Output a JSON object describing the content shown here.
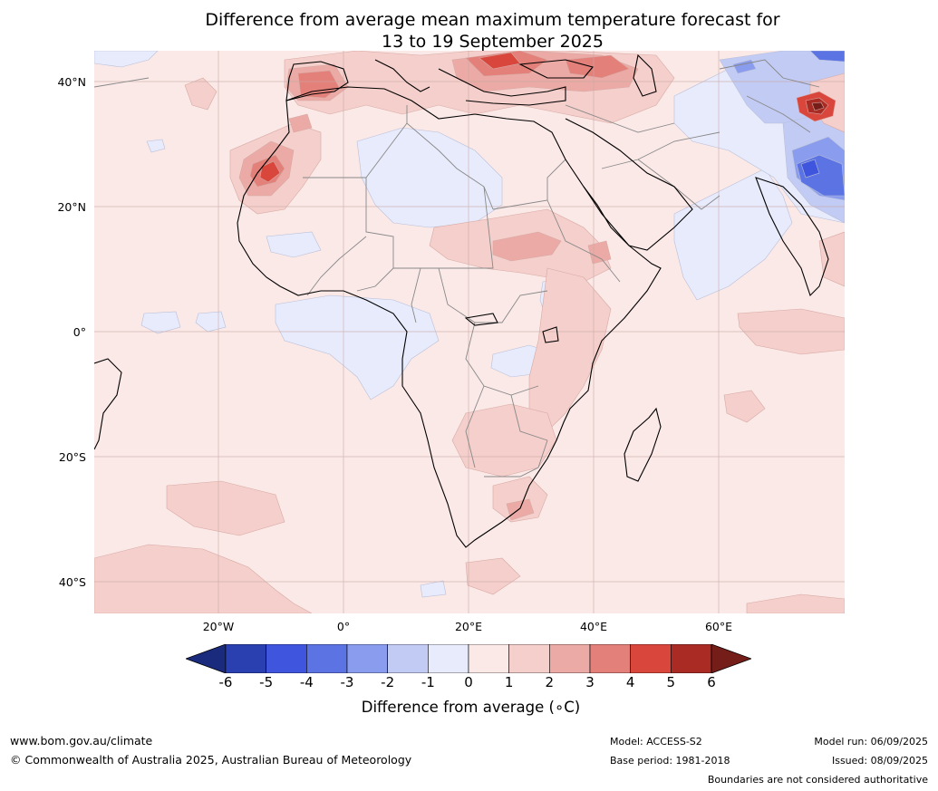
{
  "title_line1": "Difference from average mean maximum temperature forecast for",
  "title_line2": "13 to 19 September 2025",
  "map": {
    "lat_labels": [
      "40°N",
      "20°N",
      "0°",
      "20°S",
      "40°S"
    ],
    "lon_labels": [
      "20°W",
      "0°",
      "20°E",
      "40°E",
      "60°E"
    ]
  },
  "colorbar": {
    "ticks": [
      "-6",
      "-5",
      "-4",
      "-3",
      "-2",
      "-1",
      "0",
      "1",
      "2",
      "3",
      "4",
      "5",
      "6"
    ],
    "colors": [
      "#1a2a7c",
      "#2a3fb0",
      "#3f55de",
      "#5b73e3",
      "#8a9ced",
      "#c2cbf4",
      "#e8ebfc",
      "#fbe9e7",
      "#f4cfcb",
      "#ebaaa5",
      "#e3807a",
      "#d8463c",
      "#a92b24",
      "#751d18"
    ],
    "title": "Difference from average (∘C)"
  },
  "footer": {
    "website": "www.bom.gov.au/climate",
    "copyright": "© Commonwealth of Australia 2025, Australian Bureau of Meteorology",
    "model": "Model: ACCESS-S2",
    "base_period": "Base period: 1981-2018",
    "model_run": "Model run: 06/09/2025",
    "issued": "Issued: 08/09/2025",
    "disclaimer": "Boundaries are not considered authoritative"
  }
}
